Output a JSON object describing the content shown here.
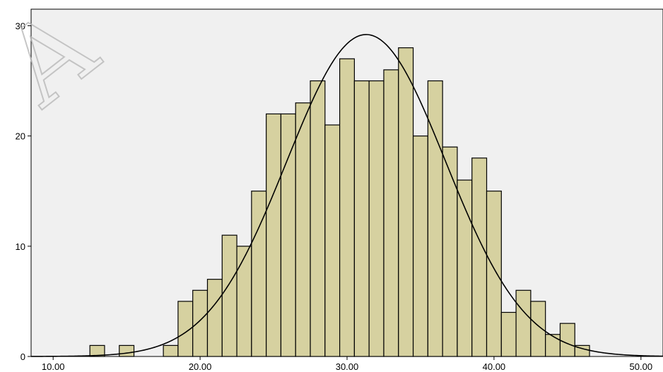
{
  "chart_data": {
    "type": "bar",
    "subtype": "histogram",
    "title": "",
    "xlabel": "",
    "ylabel": "",
    "bin_width": 1.0,
    "bins": [
      {
        "x": 13,
        "count": 1
      },
      {
        "x": 15,
        "count": 1
      },
      {
        "x": 18,
        "count": 1
      },
      {
        "x": 19,
        "count": 5
      },
      {
        "x": 20,
        "count": 6
      },
      {
        "x": 21,
        "count": 7
      },
      {
        "x": 22,
        "count": 11
      },
      {
        "x": 23,
        "count": 10
      },
      {
        "x": 24,
        "count": 15
      },
      {
        "x": 25,
        "count": 22
      },
      {
        "x": 26,
        "count": 22
      },
      {
        "x": 27,
        "count": 23
      },
      {
        "x": 28,
        "count": 25
      },
      {
        "x": 29,
        "count": 21
      },
      {
        "x": 30,
        "count": 27
      },
      {
        "x": 31,
        "count": 25
      },
      {
        "x": 32,
        "count": 25
      },
      {
        "x": 33,
        "count": 26
      },
      {
        "x": 34,
        "count": 28
      },
      {
        "x": 35,
        "count": 20
      },
      {
        "x": 36,
        "count": 25
      },
      {
        "x": 37,
        "count": 19
      },
      {
        "x": 38,
        "count": 16
      },
      {
        "x": 39,
        "count": 18
      },
      {
        "x": 40,
        "count": 15
      },
      {
        "x": 41,
        "count": 4
      },
      {
        "x": 42,
        "count": 6
      },
      {
        "x": 43,
        "count": 5
      },
      {
        "x": 44,
        "count": 2
      },
      {
        "x": 45,
        "count": 3
      },
      {
        "x": 46,
        "count": 1
      }
    ],
    "normal_curve": {
      "mean": 31.3,
      "sd": 5.4,
      "peak": 29.2
    },
    "xlim": [
      8.5,
      51.5
    ],
    "ylim": [
      0,
      31.5
    ],
    "x_ticks": [
      "10.00",
      "20.00",
      "30.00",
      "40.00",
      "50.00"
    ],
    "y_ticks": [
      "0",
      "10",
      "20",
      "30"
    ],
    "colors": {
      "bar_fill": "#d6d1a0",
      "bar_stroke": "#000000",
      "plot_background": "#f0f0f0",
      "curve": "#000000"
    },
    "grid": false,
    "watermark_text": "A"
  }
}
